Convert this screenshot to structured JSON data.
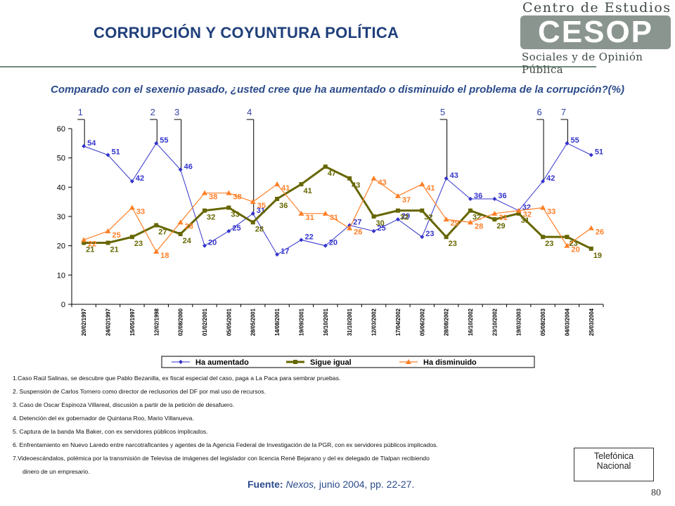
{
  "header": {
    "title": "CORRUPCIÓN Y COYUNTURA  POLÍTICA",
    "logo_top": "Centro de Estudios",
    "logo_brand": "CESOP",
    "logo_bottom": "Sociales y de Opinión Pública"
  },
  "chart_data": {
    "type": "line",
    "title": "Comparado con el sexenio pasado, ¿usted cree que ha aumentado o disminuido el problema de la corrupción?(%)",
    "categories": [
      "20/02/1997",
      "24/02/1997",
      "15/05/1997",
      "12/02/1998",
      "02/08/2000",
      "01/02/2001",
      "05/05/2001",
      "28/05/2001",
      "14/08/2001",
      "19/09/2001",
      "16/10/2001",
      "31/10/2001",
      "12/03/2002",
      "17/04/2002",
      "05/06/2002",
      "28/08/2002",
      "16/10/2002",
      "23/10/2002",
      "19/03/2003",
      "05/08/2003",
      "04/03/2004",
      "25/03/2004"
    ],
    "ylim": [
      0,
      60
    ],
    "yticks": [
      0,
      10,
      20,
      30,
      40,
      50,
      60
    ],
    "grid": false,
    "legend": "bottom",
    "series": [
      {
        "name": "Ha aumentado",
        "color": "#3333cc",
        "marker": "diamond",
        "values": [
          54,
          51,
          42,
          55,
          46,
          20,
          25,
          31,
          17,
          22,
          20,
          27,
          25,
          29,
          23,
          43,
          36,
          36,
          32,
          42,
          55,
          51
        ]
      },
      {
        "name": "Sigue igual",
        "color": "#666600",
        "marker": "square",
        "values": [
          21,
          21,
          23,
          27,
          24,
          32,
          33,
          28,
          36,
          41,
          47,
          43,
          30,
          32,
          32,
          23,
          32,
          29,
          31,
          23,
          23,
          19
        ]
      },
      {
        "name": "Ha disminuido",
        "color": "#ff7f27",
        "marker": "triangle",
        "values": [
          22,
          25,
          33,
          18,
          28,
          38,
          38,
          35,
          41,
          31,
          31,
          26,
          43,
          37,
          41,
          29,
          28,
          31,
          32,
          33,
          20,
          26
        ]
      }
    ],
    "event_markers": [
      {
        "label": "1",
        "index": 0
      },
      {
        "label": "2",
        "index": 3
      },
      {
        "label": "3",
        "index": 4
      },
      {
        "label": "4",
        "index": 7
      },
      {
        "label": "5",
        "index": 15
      },
      {
        "label": "6",
        "index": 19
      },
      {
        "label": "7",
        "index": 20
      }
    ]
  },
  "notes": [
    "1.Caso Raúl Salinas, se descubre que Pablo Bezanilla, ex fiscal especial del caso, paga a La Paca para sembrar pruebas.",
    "2. Suspensión de Carlos Tornero como director de reclusorios del DF por mal uso de recursos.",
    "3. Caso de Oscar Espinoza Villareal, discusión a partir de la petición de desafuero.",
    "4. Detención del ex gobernador de Quintana Roo, Mario Villanueva.",
    "5. Captura de la banda Ma Baker, con ex servidores públicos implicados.",
    "6. Enfrentamiento en Nuevo Laredo entre narcotraficantes y agentes de la Agencia Federal de Investigación de la PGR, con ex servidores públicos implicados.",
    "7.Videoescándalos, polémica por la transmisión de Televisa de imágenes del legislador con licencia René Bejarano y del ex delegado de Tlalpan recibiendo",
    "dinero de un empresario."
  ],
  "source": {
    "label": "Fuente:",
    "publication": "Nexos,",
    "detail": " junio 2004, pp. 22-27."
  },
  "box": {
    "line1": "Telefónica",
    "line2": "Nacional"
  },
  "page_number": "80"
}
